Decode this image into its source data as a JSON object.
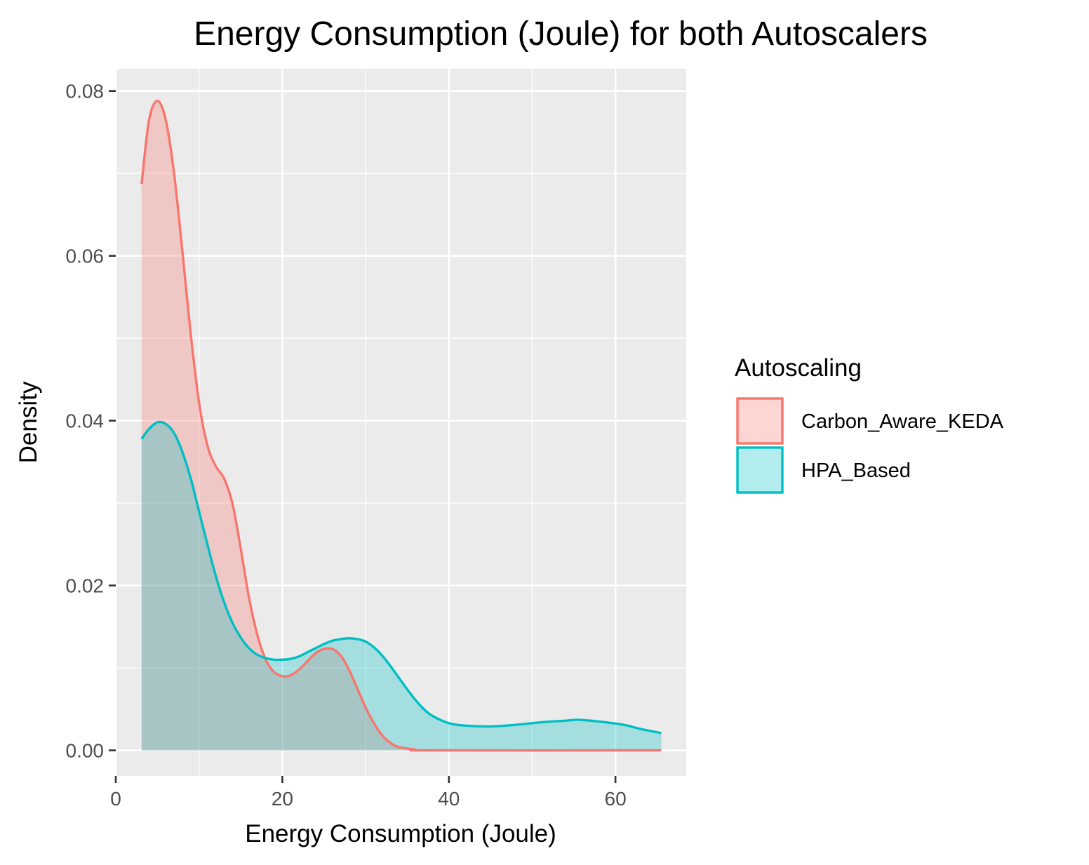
{
  "chart_data": {
    "type": "area",
    "title": "Energy Consumption (Joule) for both Autoscalers",
    "xlabel": "Energy Consumption (Joule)",
    "ylabel": "Density",
    "xlim": [
      0,
      68.5
    ],
    "ylim": [
      -0.0031,
      0.0827
    ],
    "x_ticks": [
      0,
      20,
      40,
      60
    ],
    "x_tick_labels": [
      "0",
      "20",
      "40",
      "60"
    ],
    "y_ticks": [
      0,
      0.02,
      0.04,
      0.06,
      0.08
    ],
    "y_tick_labels": [
      "0.00",
      "0.02",
      "0.04",
      "0.06",
      "0.08"
    ],
    "grid": true,
    "legend": {
      "title": "Autoscaling",
      "position": "right"
    },
    "series": [
      {
        "name": "Carbon_Aware_KEDA",
        "line_color": "#f8766d",
        "fill_color": "#f8766d",
        "fill_opacity": 0.3,
        "points": [
          [
            3.1,
            0.0687
          ],
          [
            4.0,
            0.0765
          ],
          [
            5.0,
            0.0788
          ],
          [
            6.0,
            0.0765
          ],
          [
            7.0,
            0.07
          ],
          [
            8.0,
            0.0605
          ],
          [
            9.0,
            0.0505
          ],
          [
            10.0,
            0.0422
          ],
          [
            11.0,
            0.037
          ],
          [
            12.0,
            0.0345
          ],
          [
            13.0,
            0.033
          ],
          [
            14.0,
            0.03
          ],
          [
            15.0,
            0.0245
          ],
          [
            16.0,
            0.0185
          ],
          [
            17.0,
            0.014
          ],
          [
            18.0,
            0.011
          ],
          [
            19.0,
            0.0095
          ],
          [
            20.0,
            0.009
          ],
          [
            21.0,
            0.0091
          ],
          [
            22.0,
            0.0098
          ],
          [
            23.0,
            0.0108
          ],
          [
            24.0,
            0.0118
          ],
          [
            25.0,
            0.0123
          ],
          [
            26.0,
            0.0123
          ],
          [
            27.0,
            0.0115
          ],
          [
            28.0,
            0.0098
          ],
          [
            29.0,
            0.0075
          ],
          [
            30.0,
            0.0052
          ],
          [
            31.0,
            0.0033
          ],
          [
            32.0,
            0.0018
          ],
          [
            33.0,
            0.0009
          ],
          [
            34.0,
            0.0004
          ],
          [
            36.0,
            0.0001
          ],
          [
            38.0,
            0.0
          ],
          [
            65.5,
            0.0
          ]
        ]
      },
      {
        "name": "HPA_Based",
        "line_color": "#00bfc4",
        "fill_color": "#00bfc4",
        "fill_opacity": 0.3,
        "points": [
          [
            3.1,
            0.0378
          ],
          [
            4.0,
            0.039
          ],
          [
            5.0,
            0.0398
          ],
          [
            6.0,
            0.0396
          ],
          [
            7.0,
            0.0385
          ],
          [
            8.0,
            0.0362
          ],
          [
            9.0,
            0.033
          ],
          [
            10.0,
            0.029
          ],
          [
            11.0,
            0.025
          ],
          [
            12.0,
            0.0212
          ],
          [
            13.0,
            0.018
          ],
          [
            14.0,
            0.0155
          ],
          [
            15.0,
            0.0137
          ],
          [
            16.0,
            0.0124
          ],
          [
            17.0,
            0.0116
          ],
          [
            18.0,
            0.0112
          ],
          [
            19.0,
            0.011
          ],
          [
            20.0,
            0.011
          ],
          [
            21.0,
            0.0111
          ],
          [
            22.0,
            0.0114
          ],
          [
            23.0,
            0.0119
          ],
          [
            24.0,
            0.0124
          ],
          [
            25.0,
            0.0129
          ],
          [
            26.0,
            0.0133
          ],
          [
            27.0,
            0.0135
          ],
          [
            28.0,
            0.0136
          ],
          [
            29.0,
            0.0135
          ],
          [
            30.0,
            0.0132
          ],
          [
            31.0,
            0.0125
          ],
          [
            32.0,
            0.0115
          ],
          [
            33.0,
            0.0102
          ],
          [
            34.0,
            0.0088
          ],
          [
            35.0,
            0.0074
          ],
          [
            36.0,
            0.0061
          ],
          [
            37.0,
            0.005
          ],
          [
            38.0,
            0.0042
          ],
          [
            40.0,
            0.0033
          ],
          [
            42.0,
            0.003
          ],
          [
            45.0,
            0.0029
          ],
          [
            48.0,
            0.0031
          ],
          [
            51.0,
            0.0034
          ],
          [
            54.0,
            0.0036
          ],
          [
            55.5,
            0.0037
          ],
          [
            58.0,
            0.0035
          ],
          [
            61.0,
            0.0031
          ],
          [
            63.0,
            0.0026
          ],
          [
            65.5,
            0.0021
          ]
        ]
      }
    ]
  }
}
